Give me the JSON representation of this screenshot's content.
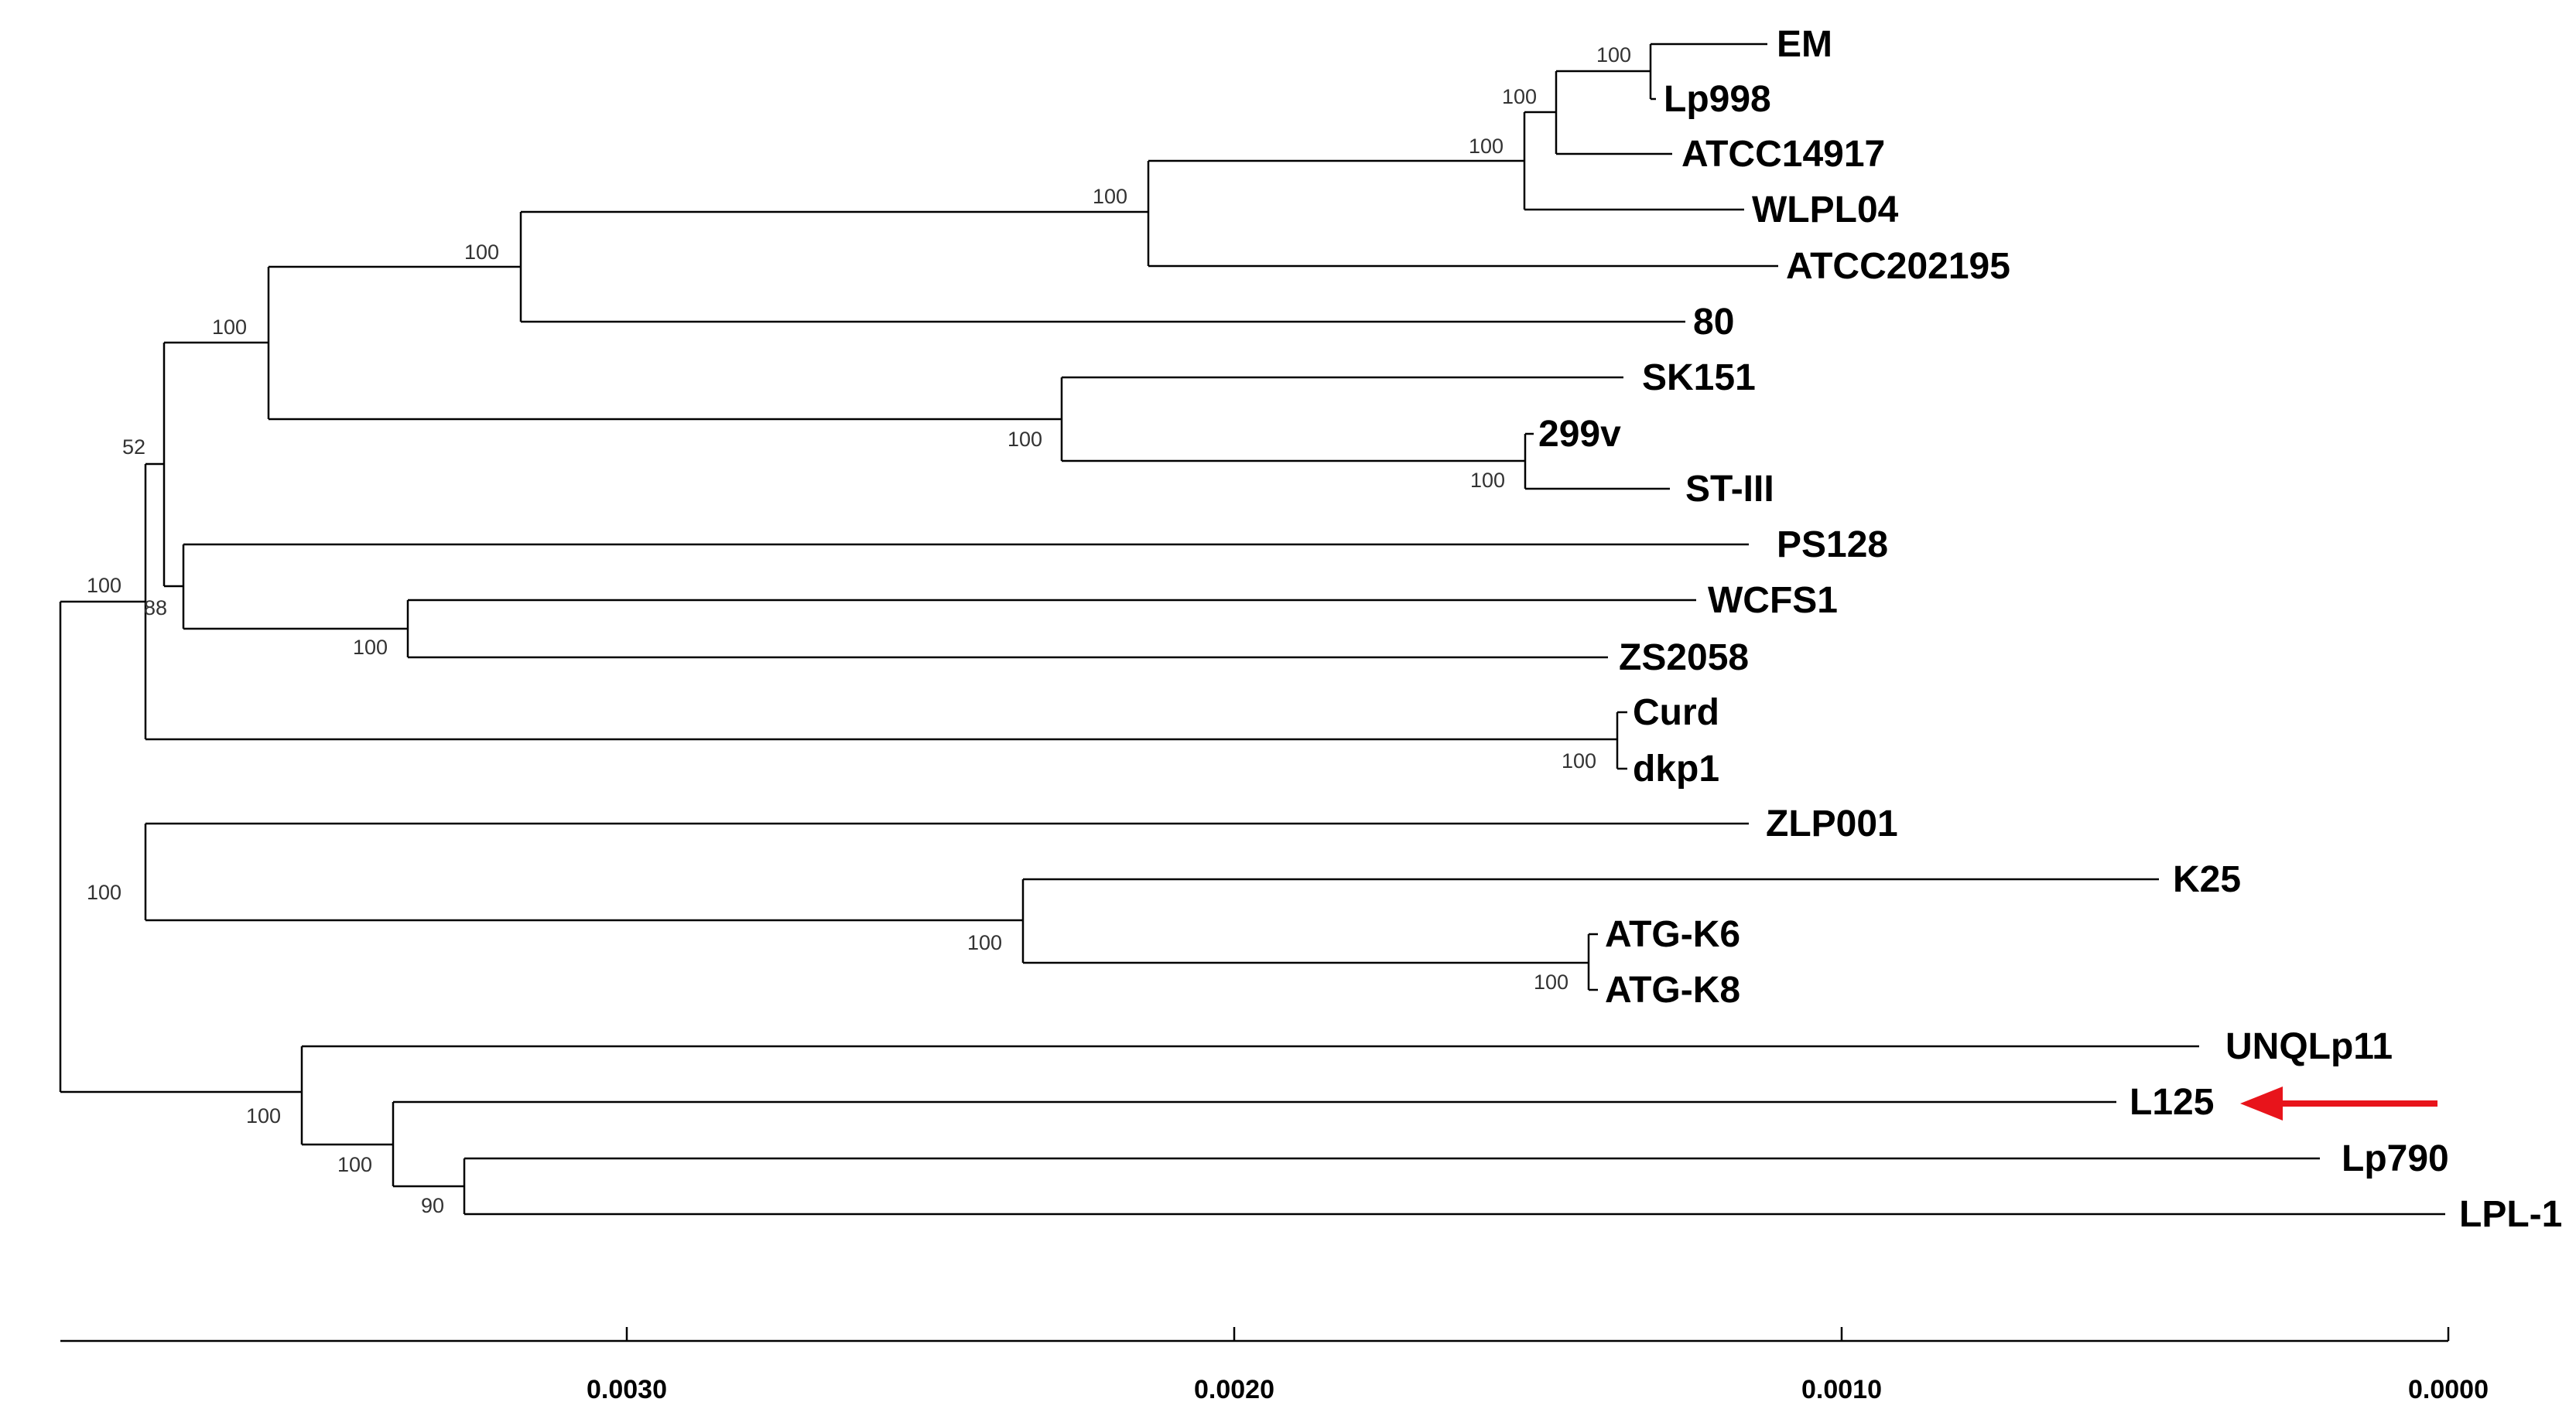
{
  "axis": {
    "ticks": [
      "0.0030",
      "0.0020",
      "0.0010",
      "0.0000"
    ]
  },
  "leaves": [
    {
      "id": "EM",
      "label": "EM"
    },
    {
      "id": "Lp998",
      "label": "Lp998"
    },
    {
      "id": "ATCC14917",
      "label": "ATCC14917"
    },
    {
      "id": "WLPL04",
      "label": "WLPL04"
    },
    {
      "id": "ATCC202195",
      "label": "ATCC202195"
    },
    {
      "id": "n80",
      "label": "80"
    },
    {
      "id": "SK151",
      "label": "SK151"
    },
    {
      "id": "n299v",
      "label": "299v"
    },
    {
      "id": "STIII",
      "label": "ST-III"
    },
    {
      "id": "PS128",
      "label": "PS128"
    },
    {
      "id": "WCFS1",
      "label": "WCFS1"
    },
    {
      "id": "ZS2058",
      "label": "ZS2058"
    },
    {
      "id": "Curd",
      "label": "Curd"
    },
    {
      "id": "dkp1",
      "label": "dkp1"
    },
    {
      "id": "ZLP001",
      "label": "ZLP001"
    },
    {
      "id": "K25",
      "label": "K25"
    },
    {
      "id": "ATGK6",
      "label": "ATG-K6"
    },
    {
      "id": "ATGK8",
      "label": "ATG-K8"
    },
    {
      "id": "UNQLp11",
      "label": "UNQLp11"
    },
    {
      "id": "L125",
      "label": "L125"
    },
    {
      "id": "Lp790",
      "label": "Lp790"
    },
    {
      "id": "LPL1",
      "label": "LPL-1"
    }
  ],
  "bootstrap": [
    "100",
    "100",
    "100",
    "100",
    "100",
    "100",
    "100",
    "100",
    "52",
    "88",
    "100",
    "100",
    "100",
    "100",
    "100",
    "100",
    "100",
    "100",
    "100",
    "90"
  ],
  "highlight": {
    "leaf": "L125",
    "arrow_color": "#e8141b"
  }
}
